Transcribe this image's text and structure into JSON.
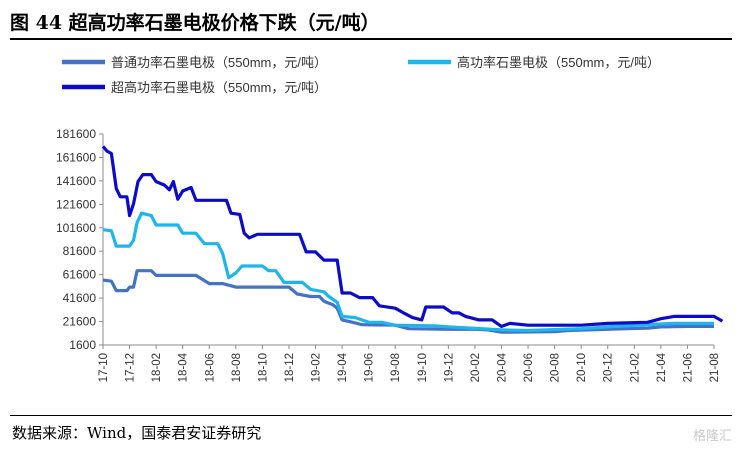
{
  "figure": {
    "title": "图 44 超高功率石墨电极价格下跌（元/吨）",
    "source": "数据来源：Wind，国泰君安证券研究",
    "watermark": "格隆汇"
  },
  "chart_data": {
    "type": "line",
    "title": "图 44 超高功率石墨电极价格下跌（元/吨）",
    "xlabel": "",
    "ylabel": "",
    "ylim": [
      1600,
      181600
    ],
    "yticks": [
      1600,
      21600,
      41600,
      61600,
      81600,
      101600,
      121600,
      141600,
      161600,
      181600
    ],
    "xlim": [
      "2017-10",
      "2021-08"
    ],
    "xtick_labels": [
      "17-10",
      "17-12",
      "18-02",
      "18-04",
      "18-06",
      "18-08",
      "18-10",
      "18-12",
      "19-02",
      "19-04",
      "19-06",
      "19-08",
      "19-10",
      "19-12",
      "20-02",
      "20-04",
      "20-06",
      "20-08",
      "20-10",
      "20-12",
      "21-02",
      "21-04",
      "21-06",
      "21-08"
    ],
    "grid": false,
    "legend_position": "top",
    "series": [
      {
        "name": "普通功率石墨电极（550mm，元/吨）",
        "color": "#4472C4",
        "points": [
          [
            "2017-10-01",
            57000
          ],
          [
            "2017-10-20",
            56000
          ],
          [
            "2017-11-01",
            48000
          ],
          [
            "2017-11-25",
            48000
          ],
          [
            "2017-12-01",
            51000
          ],
          [
            "2017-12-10",
            51000
          ],
          [
            "2017-12-18",
            65000
          ],
          [
            "2018-01-20",
            65000
          ],
          [
            "2018-02-01",
            61000
          ],
          [
            "2018-05-01",
            61000
          ],
          [
            "2018-06-01",
            54000
          ],
          [
            "2018-07-01",
            54000
          ],
          [
            "2018-08-01",
            51000
          ],
          [
            "2018-12-01",
            51000
          ],
          [
            "2018-12-20",
            45000
          ],
          [
            "2019-01-20",
            43000
          ],
          [
            "2019-02-10",
            43000
          ],
          [
            "2019-02-20",
            39000
          ],
          [
            "2019-03-10",
            36000
          ],
          [
            "2019-03-20",
            33000
          ],
          [
            "2019-04-01",
            23000
          ],
          [
            "2019-04-25",
            21000
          ],
          [
            "2019-05-15",
            19000
          ],
          [
            "2019-08-01",
            18500
          ],
          [
            "2019-09-01",
            15500
          ],
          [
            "2019-12-01",
            15000
          ],
          [
            "2020-02-01",
            15000
          ],
          [
            "2020-03-01",
            14500
          ],
          [
            "2020-04-01",
            12500
          ],
          [
            "2020-08-01",
            13000
          ],
          [
            "2020-09-01",
            14000
          ],
          [
            "2020-12-01",
            15000
          ],
          [
            "2021-03-01",
            16000
          ],
          [
            "2021-04-01",
            17000
          ],
          [
            "2021-06-01",
            17500
          ],
          [
            "2021-08-01",
            17500
          ]
        ]
      },
      {
        "name": "高功率石墨电极（550mm，元/吨）",
        "color": "#1EB4EC",
        "points": [
          [
            "2017-10-01",
            100000
          ],
          [
            "2017-10-20",
            99000
          ],
          [
            "2017-11-01",
            86000
          ],
          [
            "2017-12-01",
            86000
          ],
          [
            "2017-12-10",
            91000
          ],
          [
            "2017-12-18",
            106000
          ],
          [
            "2017-12-28",
            114000
          ],
          [
            "2018-01-20",
            112000
          ],
          [
            "2018-02-01",
            104000
          ],
          [
            "2018-03-20",
            104000
          ],
          [
            "2018-04-01",
            97000
          ],
          [
            "2018-05-01",
            97000
          ],
          [
            "2018-05-20",
            88000
          ],
          [
            "2018-06-20",
            88000
          ],
          [
            "2018-07-01",
            80000
          ],
          [
            "2018-07-15",
            59000
          ],
          [
            "2018-08-01",
            63000
          ],
          [
            "2018-08-15",
            69000
          ],
          [
            "2018-10-01",
            69000
          ],
          [
            "2018-10-15",
            65000
          ],
          [
            "2018-11-01",
            65000
          ],
          [
            "2018-11-20",
            55000
          ],
          [
            "2019-01-01",
            55000
          ],
          [
            "2019-01-20",
            49000
          ],
          [
            "2019-02-20",
            47000
          ],
          [
            "2019-03-01",
            43000
          ],
          [
            "2019-03-20",
            38000
          ],
          [
            "2019-04-01",
            26000
          ],
          [
            "2019-05-01",
            25000
          ],
          [
            "2019-06-01",
            21000
          ],
          [
            "2019-07-01",
            21000
          ],
          [
            "2019-08-01",
            18500
          ],
          [
            "2019-11-01",
            18000
          ],
          [
            "2019-12-01",
            17000
          ],
          [
            "2020-04-01",
            14500
          ],
          [
            "2020-06-01",
            14000
          ],
          [
            "2020-10-01",
            15500
          ],
          [
            "2020-12-01",
            17000
          ],
          [
            "2021-03-01",
            19000
          ],
          [
            "2021-05-01",
            20000
          ],
          [
            "2021-08-01",
            20000
          ]
        ]
      },
      {
        "name": "超高功率石墨电极（550mm，元/吨）",
        "color": "#0C0CC8",
        "points": [
          [
            "2017-10-01",
            171000
          ],
          [
            "2017-10-10",
            167000
          ],
          [
            "2017-10-20",
            165000
          ],
          [
            "2017-11-01",
            135000
          ],
          [
            "2017-11-10",
            128000
          ],
          [
            "2017-11-25",
            128000
          ],
          [
            "2017-12-01",
            112000
          ],
          [
            "2017-12-10",
            122000
          ],
          [
            "2017-12-20",
            141000
          ],
          [
            "2018-01-01",
            147000
          ],
          [
            "2018-01-20",
            147000
          ],
          [
            "2018-02-01",
            141000
          ],
          [
            "2018-02-20",
            138000
          ],
          [
            "2018-03-01",
            134000
          ],
          [
            "2018-03-10",
            141000
          ],
          [
            "2018-03-20",
            126000
          ],
          [
            "2018-04-01",
            133000
          ],
          [
            "2018-04-20",
            136000
          ],
          [
            "2018-05-01",
            125000
          ],
          [
            "2018-07-10",
            125000
          ],
          [
            "2018-07-20",
            114000
          ],
          [
            "2018-08-10",
            113000
          ],
          [
            "2018-08-20",
            97000
          ],
          [
            "2018-09-01",
            93000
          ],
          [
            "2018-09-20",
            96000
          ],
          [
            "2018-12-25",
            96000
          ],
          [
            "2019-01-10",
            81000
          ],
          [
            "2019-02-01",
            81000
          ],
          [
            "2019-02-20",
            74000
          ],
          [
            "2019-03-20",
            74000
          ],
          [
            "2019-04-01",
            46000
          ],
          [
            "2019-04-20",
            46000
          ],
          [
            "2019-05-10",
            42000
          ],
          [
            "2019-06-10",
            42000
          ],
          [
            "2019-06-25",
            35000
          ],
          [
            "2019-08-01",
            33000
          ],
          [
            "2019-08-20",
            29000
          ],
          [
            "2019-09-10",
            25000
          ],
          [
            "2019-10-01",
            23000
          ],
          [
            "2019-10-10",
            34000
          ],
          [
            "2019-11-20",
            34000
          ],
          [
            "2019-12-10",
            29000
          ],
          [
            "2019-12-25",
            29000
          ],
          [
            "2020-01-10",
            26000
          ],
          [
            "2020-01-20",
            25000
          ],
          [
            "2020-02-10",
            23000
          ],
          [
            "2020-03-10",
            23000
          ],
          [
            "2020-04-01",
            17500
          ],
          [
            "2020-04-20",
            20000
          ],
          [
            "2020-06-01",
            18500
          ],
          [
            "2020-10-01",
            18500
          ],
          [
            "2020-12-01",
            20000
          ],
          [
            "2021-03-01",
            21000
          ],
          [
            "2021-04-01",
            24000
          ],
          [
            "2021-05-01",
            26000
          ],
          [
            "2021-08-01",
            26000
          ],
          [
            "2021-08-20",
            22000
          ]
        ]
      }
    ]
  }
}
